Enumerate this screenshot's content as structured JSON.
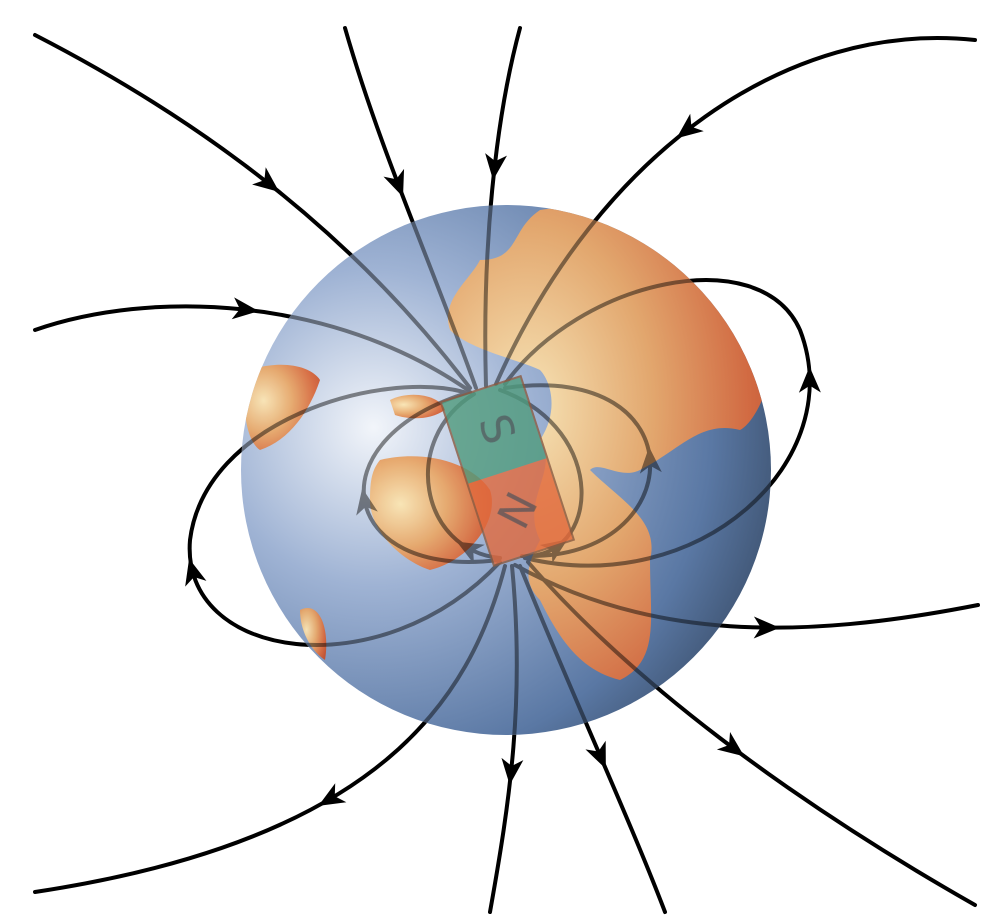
{
  "magnet": {
    "south_label": "S",
    "north_label": "N"
  }
}
